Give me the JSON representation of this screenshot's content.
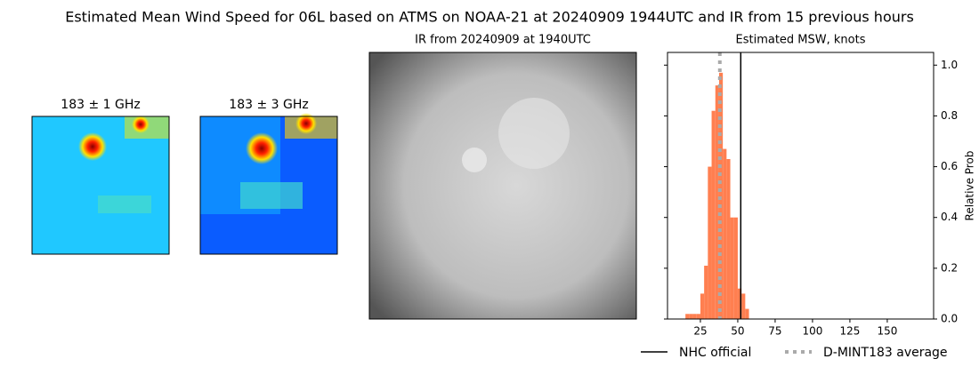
{
  "title": "Estimated Mean Wind Speed for 06L based on ATMS on NOAA-21 at 20240909 1944UTC and IR from 15 previous hours",
  "panels": [
    {
      "title": "183 ± 1 GHz"
    },
    {
      "title": "183 ± 3 GHz"
    },
    {
      "title": "IR from 20240909 at 1940UTC"
    }
  ],
  "chart_data": {
    "type": "histogram",
    "title": "Estimated MSW, knots",
    "ylabel": "Relative Prob",
    "bins": [
      15,
      17.5,
      20,
      22.5,
      25,
      27.5,
      30,
      32.5,
      35,
      37.5,
      40,
      42.5,
      45,
      47.5,
      50,
      52.5,
      55,
      57.5
    ],
    "values": [
      0.02,
      0.02,
      0.02,
      0.02,
      0.1,
      0.21,
      0.6,
      0.82,
      0.92,
      0.97,
      0.67,
      0.63,
      0.4,
      0.4,
      0.12,
      0.1,
      0.04
    ],
    "color": "#ff7f50",
    "xlim": [
      3,
      181
    ],
    "xticks": [
      25,
      50,
      75,
      100,
      125,
      150
    ],
    "ylim": [
      0,
      1.05
    ],
    "yticks": [
      {
        "value": 0,
        "label": "0.0"
      },
      {
        "value": 0.2,
        "label": "0.2"
      },
      {
        "value": 0.4,
        "label": "0.4"
      },
      {
        "value": 0.6,
        "label": "0.6"
      },
      {
        "value": 0.8,
        "label": "0.8"
      },
      {
        "value": 1,
        "label": "1.0"
      }
    ],
    "lines": [
      {
        "name": "NHC official",
        "value": 52,
        "color": "#000000",
        "dash": "solid"
      },
      {
        "name": "D-MINT183 average",
        "value": 38,
        "color": "#aaaaaa",
        "dash": "dotted"
      }
    ],
    "legend": "below"
  }
}
